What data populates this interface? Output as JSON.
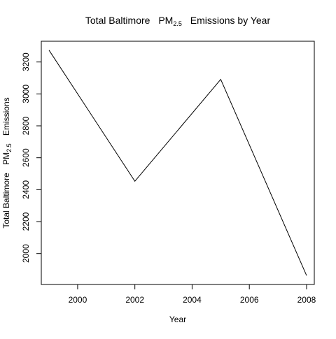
{
  "chart_data": {
    "type": "line",
    "title": {
      "prefix": "Total Baltimore",
      "pm_base": "PM",
      "pm_sub": "2.5",
      "suffix": "Emissions by Year"
    },
    "xlabel": "Year",
    "ylabel": {
      "prefix": "Total Baltimore",
      "pm_base": "PM",
      "pm_sub": "2.5",
      "suffix": "Emissions"
    },
    "x": [
      1999,
      2002,
      2005,
      2008
    ],
    "y": [
      3274,
      2453,
      3091,
      1862
    ],
    "xlim": [
      1998.73,
      2008.27
    ],
    "ylim": [
      1806,
      3330
    ],
    "xticks": [
      "2000",
      "2002",
      "2004",
      "2006",
      "2008"
    ],
    "yticks": [
      "2000",
      "2200",
      "2400",
      "2600",
      "2800",
      "3000",
      "3200"
    ],
    "line_color": "#000000",
    "grid": false,
    "legend": "none"
  }
}
